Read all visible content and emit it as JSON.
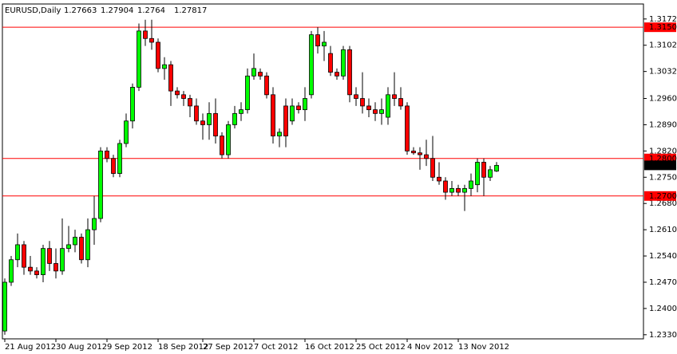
{
  "chart_data": {
    "type": "candlestick",
    "title": "EURUSD,Daily",
    "categories": [
      "21 Aug 2012",
      null,
      null,
      null,
      null,
      null,
      null,
      null,
      "30 Aug 2012",
      null,
      null,
      null,
      null,
      null,
      null,
      null,
      "9 Sep 2012",
      null,
      null,
      null,
      null,
      null,
      null,
      null,
      "18 Sep 2012",
      null,
      null,
      null,
      null,
      null,
      null,
      "27 Sep 2012",
      null,
      null,
      null,
      null,
      null,
      null,
      null,
      "7 Oct 2012",
      null,
      null,
      null,
      null,
      null,
      null,
      null,
      "16 Oct 2012",
      null,
      null,
      null,
      null,
      null,
      null,
      null,
      "25 Oct 2012",
      null,
      null,
      null,
      null,
      null,
      null,
      null,
      "4 Nov 2012",
      null,
      null,
      null,
      null,
      null,
      null,
      null,
      "13 Nov 2012",
      null,
      null,
      null,
      null,
      null,
      null
    ],
    "open": [
      1.234,
      1.247,
      1.253,
      1.257,
      1.251,
      1.25,
      1.249,
      1.256,
      1.252,
      1.25,
      1.256,
      1.257,
      1.259,
      1.253,
      1.261,
      1.264,
      1.282,
      1.28,
      1.276,
      1.284,
      1.29,
      1.299,
      1.314,
      1.312,
      1.311,
      1.304,
      1.305,
      1.298,
      1.297,
      1.296,
      1.294,
      1.29,
      1.289,
      1.292,
      1.286,
      1.281,
      1.289,
      1.292,
      1.293,
      1.302,
      1.303,
      1.302,
      1.297,
      1.286,
      1.294,
      1.29,
      1.294,
      1.293,
      1.297,
      1.313,
      1.31,
      1.308,
      1.303,
      1.302,
      1.309,
      1.297,
      1.296,
      1.294,
      1.293,
      1.292,
      1.291,
      1.297,
      1.296,
      1.294,
      1.282,
      1.2815,
      1.281,
      1.28,
      1.275,
      1.274,
      1.271,
      1.272,
      1.271,
      1.272,
      1.273,
      1.279,
      1.275,
      1.27663
    ],
    "high": [
      1.248,
      1.254,
      1.26,
      1.258,
      1.254,
      1.251,
      1.257,
      1.258,
      1.256,
      1.264,
      1.262,
      1.261,
      1.26,
      1.264,
      1.27,
      1.283,
      1.283,
      1.281,
      1.285,
      1.292,
      1.3,
      1.316,
      1.317,
      1.317,
      1.312,
      1.307,
      1.306,
      1.299,
      1.298,
      1.297,
      1.296,
      1.292,
      1.295,
      1.296,
      1.287,
      1.29,
      1.294,
      1.295,
      1.304,
      1.308,
      1.304,
      1.303,
      1.299,
      1.288,
      1.296,
      1.296,
      1.295,
      1.299,
      1.314,
      1.315,
      1.314,
      1.31,
      1.304,
      1.31,
      1.31,
      1.299,
      1.303,
      1.296,
      1.295,
      1.296,
      1.299,
      1.303,
      1.299,
      1.295,
      1.283,
      1.283,
      1.285,
      1.286,
      1.279,
      1.275,
      1.274,
      1.273,
      1.273,
      1.276,
      1.28,
      1.28,
      1.278,
      1.27904
    ],
    "low": [
      1.233,
      1.246,
      1.251,
      1.249,
      1.249,
      1.248,
      1.247,
      1.25,
      1.248,
      1.249,
      1.255,
      1.255,
      1.252,
      1.251,
      1.257,
      1.263,
      1.279,
      1.275,
      1.275,
      1.283,
      1.288,
      1.298,
      1.31,
      1.309,
      1.303,
      1.301,
      1.294,
      1.296,
      1.294,
      1.291,
      1.289,
      1.285,
      1.285,
      1.284,
      1.28,
      1.28,
      1.288,
      1.29,
      1.292,
      1.301,
      1.301,
      1.296,
      1.284,
      1.283,
      1.283,
      1.289,
      1.292,
      1.29,
      1.296,
      1.308,
      1.306,
      1.302,
      1.301,
      1.301,
      1.295,
      1.294,
      1.292,
      1.291,
      1.29,
      1.289,
      1.289,
      1.294,
      1.293,
      1.281,
      1.281,
      1.277,
      1.278,
      1.274,
      1.273,
      1.269,
      1.27,
      1.27,
      1.266,
      1.27,
      1.271,
      1.27,
      1.274,
      1.2764
    ],
    "close": [
      1.247,
      1.253,
      1.257,
      1.251,
      1.25,
      1.249,
      1.256,
      1.252,
      1.25,
      1.256,
      1.257,
      1.259,
      1.253,
      1.261,
      1.264,
      1.282,
      1.28,
      1.276,
      1.284,
      1.29,
      1.299,
      1.314,
      1.312,
      1.311,
      1.304,
      1.305,
      1.298,
      1.297,
      1.296,
      1.294,
      1.29,
      1.289,
      1.292,
      1.286,
      1.281,
      1.289,
      1.292,
      1.293,
      1.302,
      1.304,
      1.302,
      1.297,
      1.286,
      1.287,
      1.286,
      1.294,
      1.293,
      1.296,
      1.313,
      1.31,
      1.311,
      1.303,
      1.302,
      1.309,
      1.297,
      1.296,
      1.294,
      1.293,
      1.292,
      1.293,
      1.297,
      1.296,
      1.294,
      1.282,
      1.2815,
      1.281,
      1.28,
      1.275,
      1.274,
      1.271,
      1.272,
      1.271,
      1.272,
      1.274,
      1.279,
      1.275,
      1.277,
      1.27817
    ],
    "up_color": "#00ff00",
    "down_color": "#ff0000",
    "ylim": [
      1.2319,
      1.3212
    ],
    "yticks": [
      {
        "value": 1.3172,
        "label": "1.31720"
      },
      {
        "value": 1.3102,
        "label": "1.31020"
      },
      {
        "value": 1.3032,
        "label": "1.30320"
      },
      {
        "value": 1.296,
        "label": "1.29600"
      },
      {
        "value": 1.289,
        "label": "1.28900"
      },
      {
        "value": 1.282,
        "label": "1.28200"
      },
      {
        "value": 1.275,
        "label": "1.27500"
      },
      {
        "value": 1.268,
        "label": "1.26800"
      },
      {
        "value": 1.261,
        "label": "1.26100"
      },
      {
        "value": 1.254,
        "label": "1.25400"
      },
      {
        "value": 1.247,
        "label": "1.24700"
      },
      {
        "value": 1.24,
        "label": "1.24000"
      },
      {
        "value": 1.233,
        "label": "1.23300"
      }
    ],
    "levels": [
      {
        "value": 1.315,
        "label": "1.31500"
      },
      {
        "value": 1.28,
        "label": "1.28000"
      },
      {
        "value": 1.27,
        "label": "1.27000"
      }
    ],
    "level_color": "#ff0000"
  }
}
